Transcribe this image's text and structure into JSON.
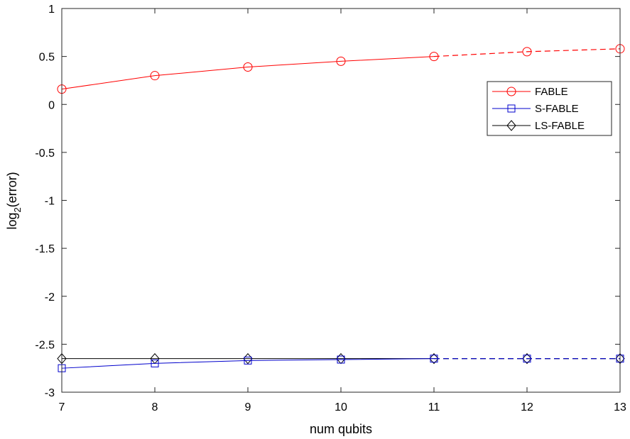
{
  "chart_data": {
    "type": "line",
    "title": "",
    "xlabel": "num qubits",
    "ylabel_main": "log",
    "ylabel_sub": "2",
    "ylabel_tail": "(error)",
    "xlim": [
      7,
      13
    ],
    "ylim": [
      -3,
      1
    ],
    "xticks": [
      7,
      8,
      9,
      10,
      11,
      12,
      13
    ],
    "yticks": [
      -3,
      -2.5,
      -2,
      -1.5,
      -1,
      -0.5,
      0,
      0.5,
      1
    ],
    "xtick_labels": [
      "7",
      "8",
      "9",
      "10",
      "11",
      "12",
      "13"
    ],
    "ytick_labels": [
      "-3",
      "-2.5",
      "-2",
      "-1.5",
      "-1",
      "-0.5",
      "0",
      "0.5",
      "1"
    ],
    "grid": false,
    "legend_position": "upper-right",
    "x": [
      7,
      8,
      9,
      10,
      11,
      12,
      13
    ],
    "dashed_from_x": 11,
    "series": [
      {
        "name": "FABLE",
        "color": "#ff0000",
        "marker": "circle",
        "values": [
          0.16,
          0.3,
          0.39,
          0.45,
          0.5,
          0.55,
          0.58
        ]
      },
      {
        "name": "S-FABLE",
        "color": "#0000cc",
        "marker": "square",
        "values": [
          -2.75,
          -2.7,
          -2.67,
          -2.66,
          -2.65,
          -2.65,
          -2.65
        ]
      },
      {
        "name": "LS-FABLE",
        "color": "#000000",
        "marker": "diamond",
        "values": [
          -2.65,
          -2.65,
          -2.65,
          -2.65,
          -2.65,
          -2.65,
          -2.65
        ]
      }
    ]
  }
}
